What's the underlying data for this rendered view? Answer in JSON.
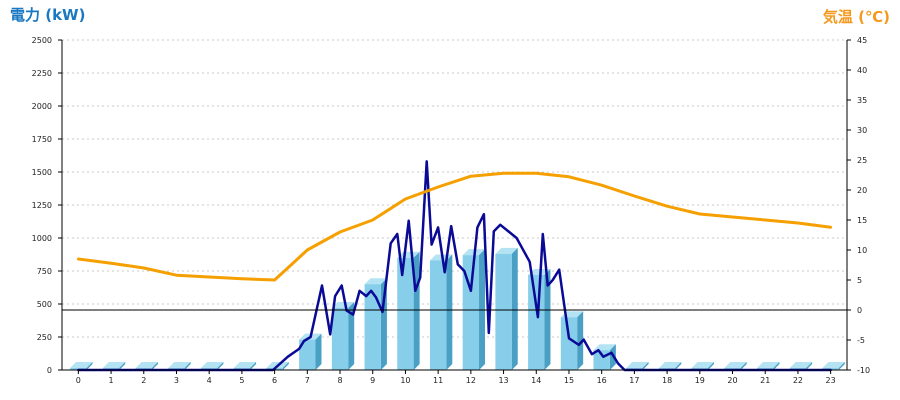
{
  "chart_data": {
    "type": "bar+line",
    "y_left_label": "電力 (kW)",
    "y_right_label": "気温 (℃)",
    "colors": {
      "left_label": "#1a78c2",
      "right_label": "#f39a1e",
      "bar": "#87ceea",
      "bar_side": "#4a9fc4",
      "bar_top": "#b4e3f4",
      "power_line": "#0a0a96",
      "temp_line": "#f5a000",
      "grid": "#c8c8c8"
    },
    "grid": true,
    "y_left": {
      "min": 0,
      "max": 2500,
      "ticks": [
        0,
        250,
        500,
        750,
        1000,
        1250,
        1500,
        1750,
        2000,
        2250,
        2500
      ]
    },
    "y_right": {
      "min": -10,
      "max": 45,
      "ticks": [
        -10,
        -5,
        0,
        5,
        10,
        15,
        20,
        25,
        30,
        35,
        40,
        45
      ]
    },
    "categories": [
      "0",
      "1",
      "2",
      "3",
      "4",
      "5",
      "6",
      "7",
      "8",
      "9",
      "10",
      "11",
      "12",
      "13",
      "14",
      "15",
      "16",
      "17",
      "18",
      "19",
      "20",
      "21",
      "22",
      "23"
    ],
    "series": [
      {
        "type": "bar",
        "axis": "left",
        "values": [
          15,
          15,
          15,
          15,
          15,
          15,
          15,
          230,
          470,
          650,
          850,
          830,
          870,
          880,
          720,
          400,
          150,
          15,
          15,
          15,
          15,
          15,
          15,
          15
        ]
      },
      {
        "type": "line",
        "axis": "left",
        "points": [
          [
            0,
            0
          ],
          [
            1,
            0
          ],
          [
            2,
            0
          ],
          [
            3,
            0
          ],
          [
            4,
            0
          ],
          [
            5,
            0
          ],
          [
            5.95,
            0
          ],
          [
            6.4,
            100
          ],
          [
            6.75,
            160
          ],
          [
            6.9,
            220
          ],
          [
            7.1,
            250
          ],
          [
            7.45,
            640
          ],
          [
            7.7,
            270
          ],
          [
            7.85,
            560
          ],
          [
            8.05,
            640
          ],
          [
            8.2,
            450
          ],
          [
            8.4,
            420
          ],
          [
            8.6,
            600
          ],
          [
            8.8,
            560
          ],
          [
            8.95,
            600
          ],
          [
            9.1,
            550
          ],
          [
            9.3,
            440
          ],
          [
            9.55,
            960
          ],
          [
            9.75,
            1030
          ],
          [
            9.9,
            720
          ],
          [
            10.1,
            1130
          ],
          [
            10.3,
            600
          ],
          [
            10.45,
            700
          ],
          [
            10.65,
            1580
          ],
          [
            10.8,
            950
          ],
          [
            11.0,
            1080
          ],
          [
            11.2,
            740
          ],
          [
            11.4,
            1090
          ],
          [
            11.6,
            800
          ],
          [
            11.8,
            750
          ],
          [
            12.0,
            600
          ],
          [
            12.2,
            1080
          ],
          [
            12.4,
            1180
          ],
          [
            12.55,
            280
          ],
          [
            12.7,
            1050
          ],
          [
            12.9,
            1100
          ],
          [
            13.4,
            1000
          ],
          [
            13.8,
            820
          ],
          [
            14.05,
            400
          ],
          [
            14.2,
            1030
          ],
          [
            14.35,
            640
          ],
          [
            14.5,
            680
          ],
          [
            14.7,
            760
          ],
          [
            15.0,
            240
          ],
          [
            15.3,
            190
          ],
          [
            15.45,
            230
          ],
          [
            15.7,
            120
          ],
          [
            15.9,
            150
          ],
          [
            16.05,
            100
          ],
          [
            16.3,
            130
          ],
          [
            16.5,
            50
          ],
          [
            16.7,
            0
          ],
          [
            17,
            0
          ],
          [
            18,
            0
          ],
          [
            19,
            0
          ],
          [
            20,
            0
          ],
          [
            21,
            0
          ],
          [
            22,
            0
          ],
          [
            23,
            0
          ]
        ]
      },
      {
        "type": "line",
        "axis": "right",
        "points": [
          [
            0,
            8.5
          ],
          [
            1,
            7.8
          ],
          [
            2,
            7
          ],
          [
            3,
            5.8
          ],
          [
            4,
            5.5
          ],
          [
            5,
            5.2
          ],
          [
            6,
            5
          ],
          [
            6.5,
            7.5
          ],
          [
            7,
            10
          ],
          [
            8,
            13
          ],
          [
            9,
            15
          ],
          [
            10,
            18.5
          ],
          [
            11,
            20.5
          ],
          [
            12,
            22.3
          ],
          [
            13,
            22.8
          ],
          [
            14,
            22.8
          ],
          [
            15,
            22.2
          ],
          [
            16,
            20.8
          ],
          [
            17,
            19
          ],
          [
            18,
            17.3
          ],
          [
            19,
            16
          ],
          [
            20,
            15.5
          ],
          [
            21,
            15
          ],
          [
            22,
            14.5
          ],
          [
            23,
            13.8
          ]
        ]
      }
    ]
  }
}
